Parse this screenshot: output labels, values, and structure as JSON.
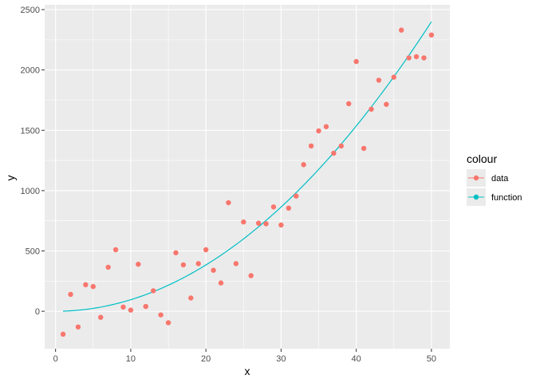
{
  "chart_data": {
    "type": "scatter",
    "xlabel": "x",
    "ylabel": "y",
    "xlim": [
      -1.45,
      52.45
    ],
    "ylim": [
      -310,
      2540
    ],
    "x_ticks": [
      0,
      10,
      20,
      30,
      40,
      50
    ],
    "y_ticks": [
      0,
      500,
      1000,
      1500,
      2000,
      2500
    ],
    "x_tick_labels": [
      "0",
      "10",
      "20",
      "30",
      "40",
      "50"
    ],
    "y_tick_labels": [
      "0",
      "500",
      "1000",
      "1500",
      "2000",
      "2500"
    ],
    "grid": true,
    "legend": {
      "title": "colour",
      "position": "right",
      "entries": [
        {
          "label": "data",
          "color": "#F8766D"
        },
        {
          "label": "function",
          "color": "#00BFC4"
        }
      ]
    },
    "series": [
      {
        "name": "data",
        "kind": "points",
        "color": "#F8766D",
        "x": [
          1,
          2,
          3,
          4,
          5,
          6,
          7,
          8,
          9,
          10,
          11,
          12,
          13,
          14,
          15,
          16,
          17,
          18,
          19,
          20,
          21,
          22,
          23,
          24,
          25,
          26,
          27,
          28,
          29,
          30,
          31,
          32,
          33,
          34,
          35,
          36,
          37,
          38,
          39,
          40,
          41,
          42,
          43,
          44,
          45,
          46,
          47,
          48,
          49,
          50
        ],
        "y": [
          -190,
          140,
          -130,
          220,
          205,
          -50,
          365,
          510,
          35,
          10,
          390,
          40,
          170,
          -30,
          -95,
          485,
          385,
          110,
          395,
          510,
          340,
          235,
          900,
          395,
          740,
          295,
          730,
          725,
          865,
          715,
          855,
          955,
          1215,
          1370,
          1495,
          1530,
          1310,
          1370,
          1720,
          2070,
          1350,
          1675,
          1915,
          1715,
          1940,
          2330,
          2100,
          2110,
          2100,
          2290
        ]
      },
      {
        "name": "function",
        "kind": "line",
        "color": "#00BFC4",
        "x": [
          1,
          50
        ],
        "y": [
          1,
          2400
        ],
        "formula": "y = x^2 * 0.96"
      }
    ]
  }
}
